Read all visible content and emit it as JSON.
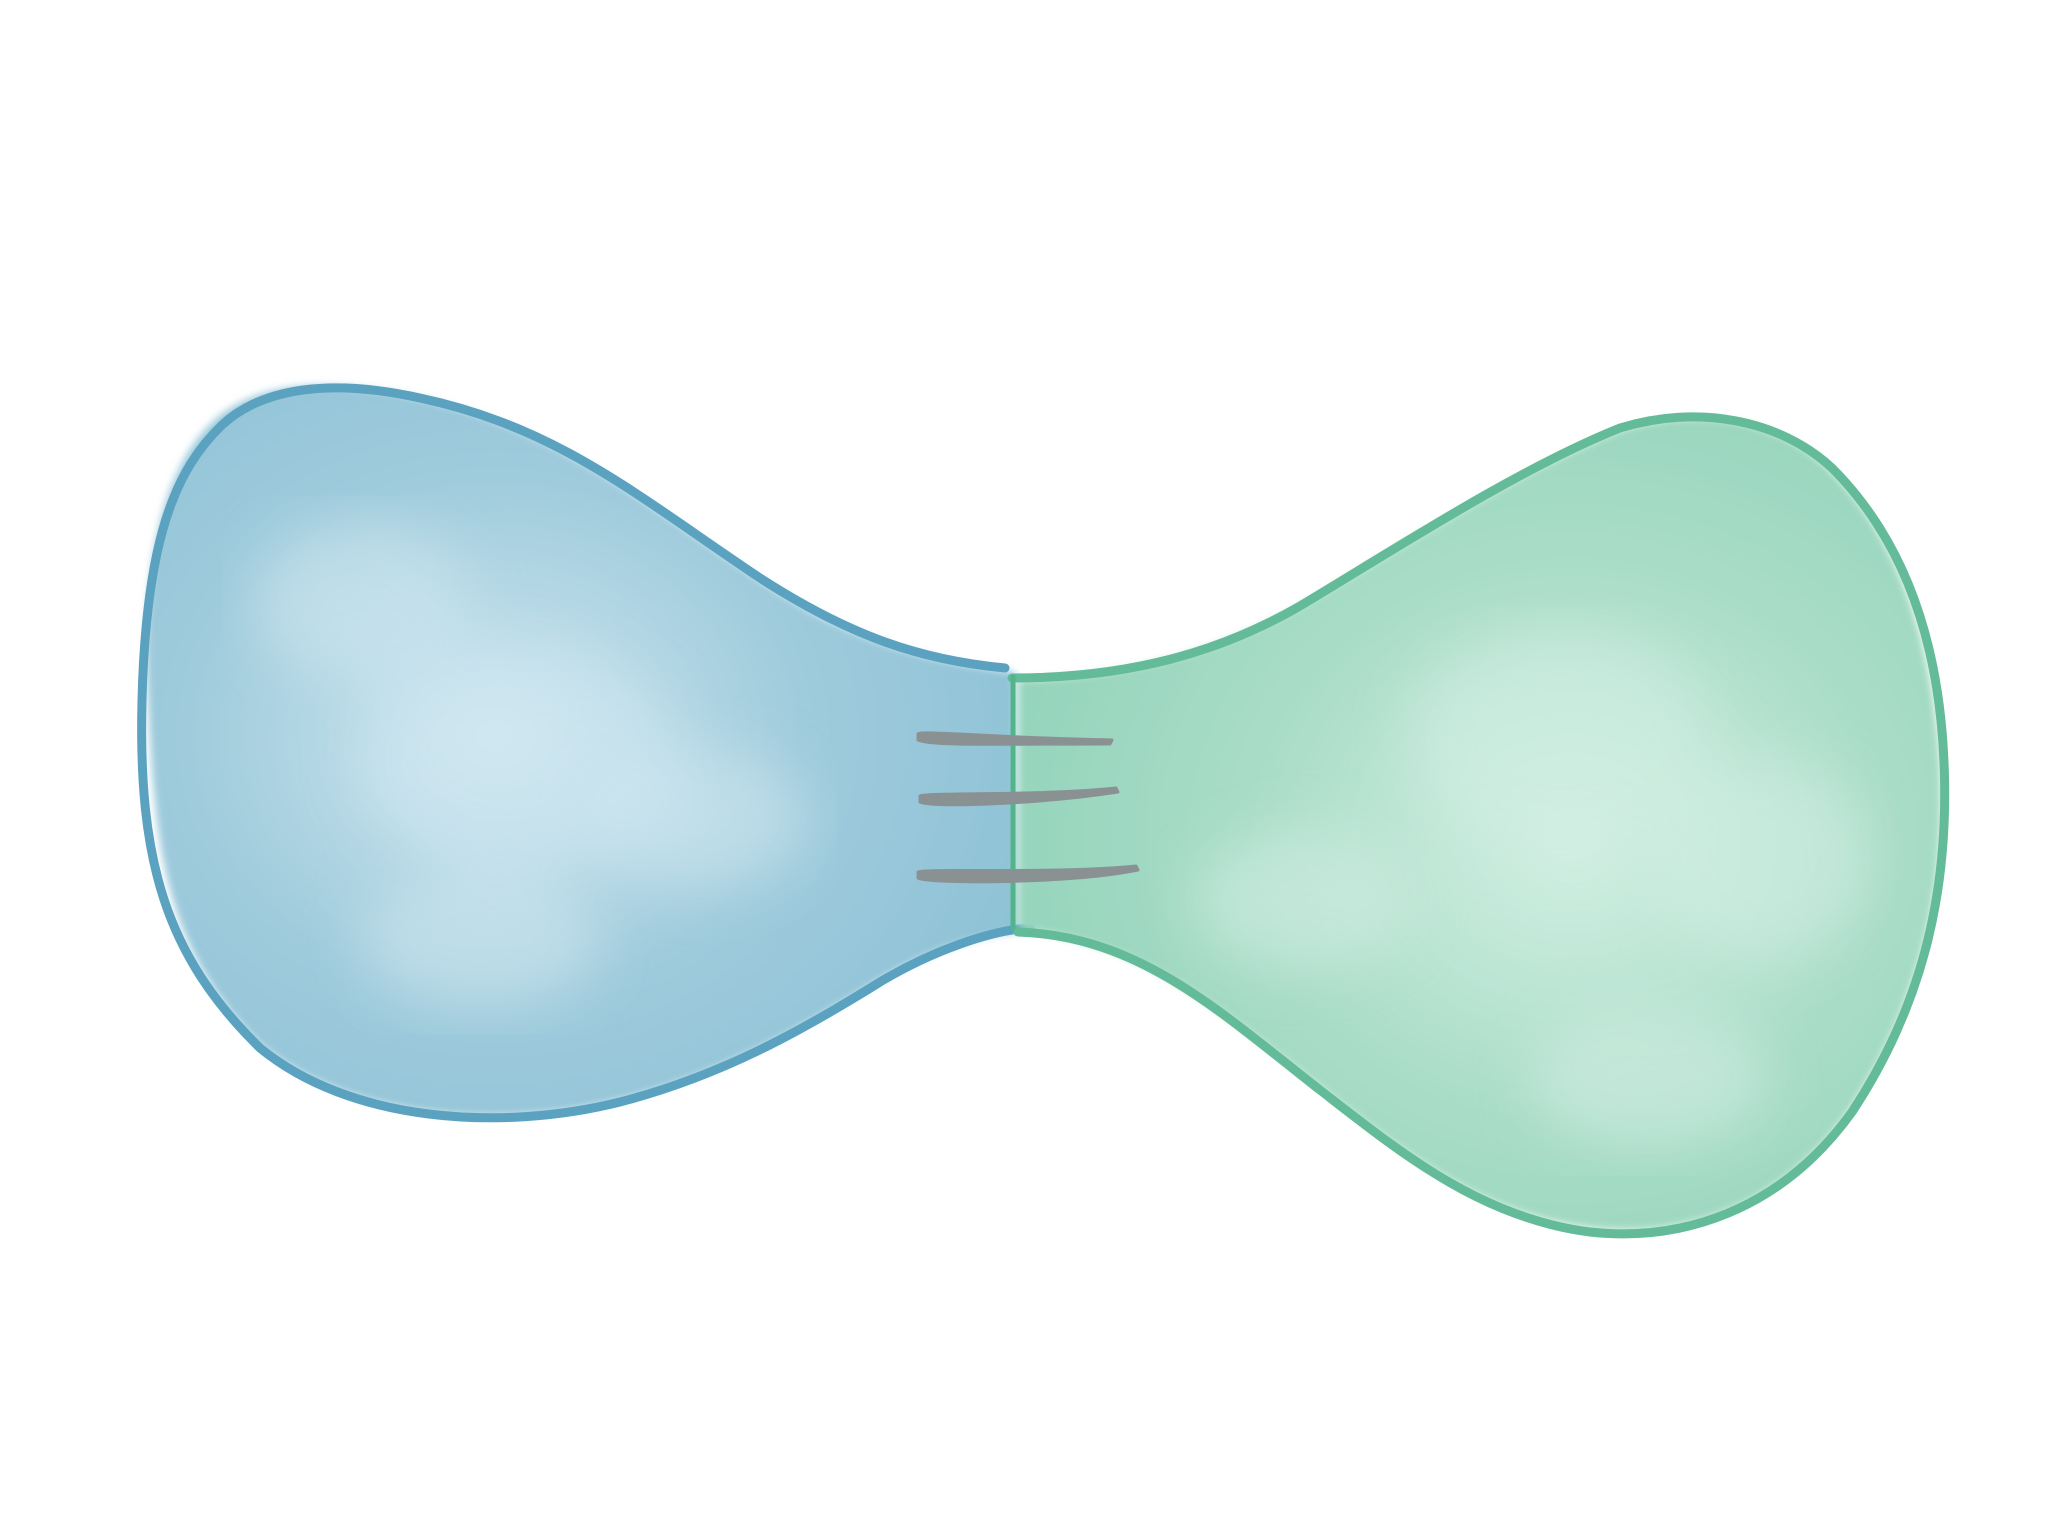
{
  "diagram": {
    "colors": {
      "background": "#ffffff",
      "left_fill_light": "#cfe7f0",
      "left_fill_mid": "#9fcbdc",
      "left_fill_dark": "#8ec2d6",
      "left_outline": "#5aa2c0",
      "right_fill_light": "#d2efe3",
      "right_fill_mid": "#a8dcc7",
      "right_fill_dark": "#93d3bb",
      "right_outline": "#63bb99",
      "junction_line": "#53b38b",
      "stitch": "#8a9192"
    },
    "stitch_count": 3
  }
}
